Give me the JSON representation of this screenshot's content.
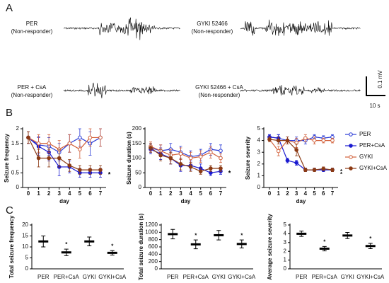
{
  "panel_a": {
    "label": "A",
    "traces": [
      {
        "name": "PER",
        "note": "(Non-responder)"
      },
      {
        "name": "GYKI 52466",
        "note": "(Non-responder)"
      },
      {
        "name": "PER + CsA",
        "note": "(Non-responder)"
      },
      {
        "name": "GYKI 52466 + CsA",
        "note": "(Non-responder)"
      }
    ],
    "scale_y": "0.1 mV",
    "scale_x": "10 s"
  },
  "panel_labels": [
    "B",
    "C"
  ],
  "chart_data": [
    {
      "type": "line",
      "ylabel": "Seizure frequency",
      "xlabel": "day",
      "x": [
        0,
        1,
        2,
        3,
        4,
        5,
        6,
        7
      ],
      "xlim": [
        0,
        7
      ],
      "xticks": [
        0,
        1,
        2,
        3,
        4,
        5,
        6,
        7
      ],
      "ylim": [
        0,
        2
      ],
      "yticks": [
        0,
        0.5,
        1,
        1.5,
        2
      ],
      "series": [
        {
          "name": "PER",
          "color": "#2a3bd6",
          "marker": "open",
          "values": [
            1.7,
            1.45,
            1.4,
            1.2,
            1.5,
            1.7,
            1.5,
            1.7
          ],
          "errors": [
            0.2,
            0.3,
            0.3,
            0.3,
            0.3,
            0.3,
            0.4,
            0.3
          ]
        },
        {
          "name": "PER+CsA",
          "color": "#1a1ad0",
          "marker": "filled",
          "values": [
            1.7,
            1.4,
            1.2,
            0.7,
            0.7,
            0.5,
            0.5,
            0.5
          ],
          "errors": [
            0.2,
            0.3,
            0.3,
            0.3,
            0.2,
            0.15,
            0.15,
            0.15
          ]
        },
        {
          "name": "GYKI",
          "color": "#d2603a",
          "marker": "open",
          "values": [
            1.7,
            1.5,
            1.5,
            1.3,
            1.5,
            1.3,
            1.7,
            1.7
          ],
          "errors": [
            0.2,
            0.3,
            0.3,
            0.3,
            0.3,
            0.3,
            0.3,
            0.3
          ]
        },
        {
          "name": "GYKI+CsA",
          "color": "#8b3a14",
          "marker": "filled",
          "values": [
            1.7,
            1.0,
            1.0,
            1.0,
            0.75,
            0.6,
            0.6,
            0.6
          ],
          "errors": [
            0.2,
            0.3,
            0.3,
            0.3,
            0.2,
            0.15,
            0.15,
            0.15
          ]
        }
      ],
      "annotations": [
        {
          "text": "*",
          "series": 1
        },
        {
          "text": "*",
          "series": 3
        }
      ]
    },
    {
      "type": "line",
      "ylabel": "Seizure duration (s)",
      "xlabel": "day",
      "x": [
        0,
        1,
        2,
        3,
        4,
        5,
        6,
        7
      ],
      "xlim": [
        0,
        7
      ],
      "xticks": [
        0,
        1,
        2,
        3,
        4,
        5,
        6,
        7
      ],
      "ylim": [
        0,
        200
      ],
      "yticks": [
        0,
        50,
        100,
        150,
        200
      ],
      "series": [
        {
          "name": "PER",
          "color": "#2a3bd6",
          "marker": "open",
          "values": [
            135,
            125,
            130,
            120,
            105,
            110,
            130,
            125
          ],
          "errors": [
            15,
            20,
            20,
            20,
            20,
            20,
            20,
            20
          ]
        },
        {
          "name": "PER+CsA",
          "color": "#1a1ad0",
          "marker": "filled",
          "values": [
            130,
            115,
            100,
            75,
            75,
            65,
            50,
            55
          ],
          "errors": [
            15,
            20,
            20,
            20,
            15,
            15,
            10,
            10
          ]
        },
        {
          "name": "GYKI",
          "color": "#d2603a",
          "marker": "open",
          "values": [
            140,
            125,
            110,
            115,
            100,
            105,
            120,
            100
          ],
          "errors": [
            15,
            20,
            20,
            20,
            20,
            20,
            20,
            15
          ]
        },
        {
          "name": "GYKI+CsA",
          "color": "#8b3a14",
          "marker": "filled",
          "values": [
            135,
            110,
            100,
            80,
            70,
            55,
            65,
            65
          ],
          "errors": [
            15,
            20,
            20,
            20,
            15,
            10,
            10,
            10
          ]
        }
      ],
      "annotations": [
        {
          "text": "*",
          "series": 1
        },
        {
          "text": "*",
          "series": 3
        }
      ]
    },
    {
      "type": "line",
      "ylabel": "Seizure severity",
      "xlabel": "day",
      "x": [
        0,
        1,
        2,
        3,
        4,
        5,
        6,
        7
      ],
      "xlim": [
        0,
        7
      ],
      "xticks": [
        0,
        1,
        2,
        3,
        4,
        5,
        6,
        7
      ],
      "ylim": [
        0,
        5
      ],
      "yticks": [
        0,
        1,
        2,
        3,
        4,
        5
      ],
      "series": [
        {
          "name": "PER",
          "color": "#2a3bd6",
          "marker": "open",
          "values": [
            4.3,
            4.2,
            4.0,
            4.0,
            4.0,
            4.3,
            4.2,
            4.3
          ],
          "errors": [
            0.2,
            0.3,
            0.3,
            0.3,
            0.3,
            0.2,
            0.2,
            0.2
          ]
        },
        {
          "name": "PER+CsA",
          "color": "#1a1ad0",
          "marker": "filled",
          "values": [
            4.3,
            4.2,
            2.3,
            2.1,
            1.5,
            1.5,
            1.5,
            1.5
          ],
          "errors": [
            0.2,
            0.3,
            0.2,
            0.2,
            0.15,
            0.15,
            0.15,
            0.15
          ]
        },
        {
          "name": "GYKI",
          "color": "#d2603a",
          "marker": "open",
          "values": [
            4.1,
            3.1,
            4.0,
            3.8,
            4.2,
            4.0,
            4.0,
            4.0
          ],
          "errors": [
            0.2,
            0.4,
            0.3,
            0.4,
            0.3,
            0.3,
            0.2,
            0.2
          ]
        },
        {
          "name": "GYKI+CsA",
          "color": "#8b3a14",
          "marker": "filled",
          "values": [
            4.1,
            4.0,
            4.0,
            3.2,
            1.5,
            1.5,
            1.6,
            1.5
          ],
          "errors": [
            0.2,
            0.3,
            0.3,
            0.5,
            0.15,
            0.15,
            0.15,
            0.15
          ]
        }
      ],
      "annotations": [
        {
          "text": "*",
          "series": 1
        },
        {
          "text": "*",
          "series": 3
        }
      ]
    },
    {
      "type": "dot",
      "ylabel": "Total seizure frequency",
      "categories": [
        "PER",
        "PER+CsA",
        "GYKI",
        "GYKI+CsA"
      ],
      "values": [
        12.5,
        7.5,
        12.5,
        7.3
      ],
      "errors": [
        2.5,
        1.5,
        2,
        1
      ],
      "ylim": [
        0,
        20
      ],
      "yticks": [
        0,
        5,
        10,
        15,
        20
      ],
      "annotations": [
        {
          "text": "*",
          "category": 1
        },
        {
          "text": "*",
          "category": 3
        }
      ]
    },
    {
      "type": "dot",
      "ylabel": "Total seizure duration (s)",
      "categories": [
        "PER",
        "PER+CsA",
        "GYKI",
        "GYKI+CsA"
      ],
      "values": [
        950,
        670,
        920,
        680
      ],
      "errors": [
        130,
        120,
        130,
        110
      ],
      "ylim": [
        0,
        1200
      ],
      "yticks": [
        0,
        200,
        400,
        600,
        800,
        1000,
        1200
      ],
      "annotations": [
        {
          "text": "*",
          "category": 1
        },
        {
          "text": "*",
          "category": 3
        }
      ]
    },
    {
      "type": "dot",
      "ylabel": "Average seizure severity",
      "categories": [
        "PER",
        "PER+CsA",
        "GYKI",
        "GYKI+CsA"
      ],
      "values": [
        4,
        2.3,
        3.8,
        2.6
      ],
      "errors": [
        0.3,
        0.25,
        0.35,
        0.3
      ],
      "ylim": [
        0,
        5
      ],
      "yticks": [
        0,
        1,
        2,
        3,
        4,
        5
      ],
      "annotations": [
        {
          "text": "*",
          "category": 1
        },
        {
          "text": "*",
          "category": 3
        }
      ]
    }
  ]
}
